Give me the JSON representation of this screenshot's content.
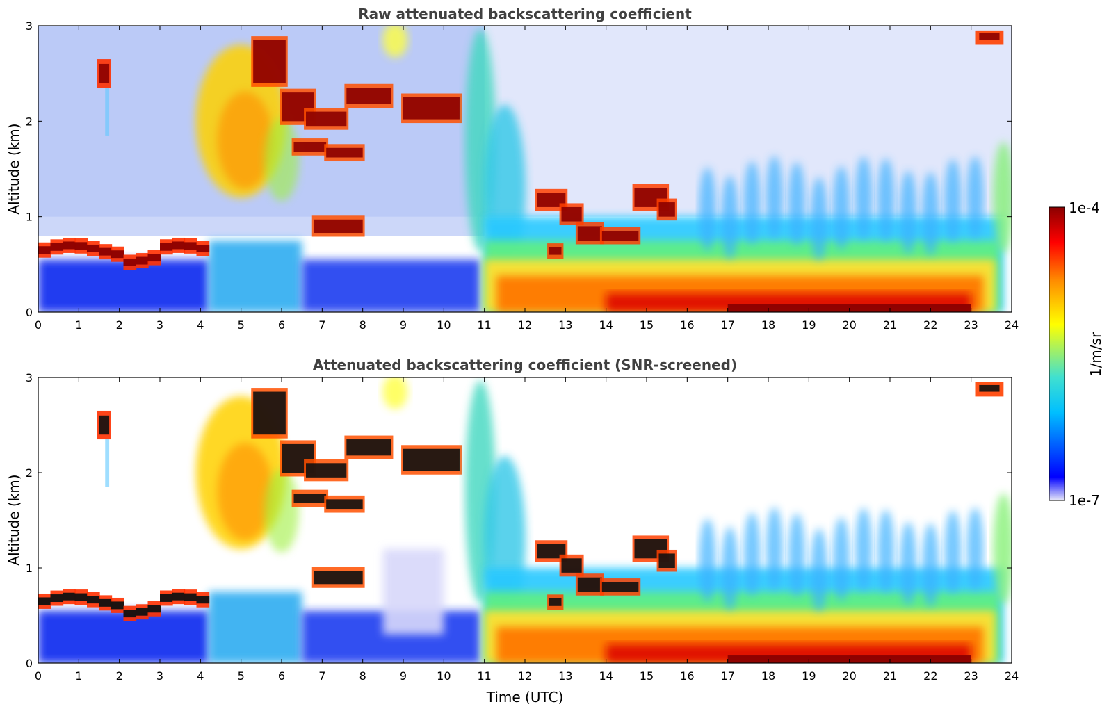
{
  "chart_data": [
    {
      "type": "heatmap",
      "title": "Raw attenuated backscattering coefficient",
      "xlabel": "",
      "ylabel": "Altitude (km)",
      "xlim": [
        0,
        24
      ],
      "ylim": [
        0,
        3
      ],
      "xticks": [
        "0",
        "1",
        "2",
        "3",
        "4",
        "5",
        "6",
        "7",
        "8",
        "9",
        "10",
        "11",
        "12",
        "13",
        "14",
        "15",
        "16",
        "17",
        "18",
        "19",
        "20",
        "21",
        "22",
        "23",
        "24"
      ],
      "yticks": [
        "0",
        "1",
        "2",
        "3"
      ],
      "grid": false,
      "log_color_scale": true,
      "features": [
        {
          "x": [
            0,
            4.2
          ],
          "y": [
            0.5,
            0.75
          ],
          "level": "max"
        },
        {
          "x": [
            1.5,
            1.8
          ],
          "y": [
            2.35,
            2.65
          ],
          "level": "high"
        },
        {
          "x": [
            4.3,
            5.9
          ],
          "y": [
            1.2,
            2.9
          ],
          "level": "mid-high"
        },
        {
          "x": [
            5.2,
            6.2
          ],
          "y": [
            2.35,
            2.85
          ],
          "level": "max"
        },
        {
          "x": [
            6.0,
            7.6
          ],
          "y": [
            1.9,
            2.3
          ],
          "level": "max"
        },
        {
          "x": [
            6.8,
            8.0
          ],
          "y": [
            0.8,
            0.95
          ],
          "level": "max"
        },
        {
          "x": [
            7.6,
            8.7
          ],
          "y": [
            2.15,
            2.35
          ],
          "level": "max"
        },
        {
          "x": [
            9.0,
            10.4
          ],
          "y": [
            2.0,
            2.25
          ],
          "level": "max"
        },
        {
          "x": [
            11.0,
            24.0
          ],
          "y": [
            0.0,
            0.6
          ],
          "level": "high"
        },
        {
          "x": [
            12.5,
            15.8
          ],
          "y": [
            0.7,
            1.3
          ],
          "level": "max"
        }
      ]
    },
    {
      "type": "heatmap",
      "title": "Attenuated backscattering coefficient (SNR-screened)",
      "xlabel": "Time (UTC)",
      "ylabel": "Altitude (km)",
      "xlim": [
        0,
        24
      ],
      "ylim": [
        0,
        3
      ],
      "xticks": [
        "0",
        "1",
        "2",
        "3",
        "4",
        "5",
        "6",
        "7",
        "8",
        "9",
        "10",
        "11",
        "12",
        "13",
        "14",
        "15",
        "16",
        "17",
        "18",
        "19",
        "20",
        "21",
        "22",
        "23",
        "24"
      ],
      "yticks": [
        "0",
        "1",
        "2",
        "3"
      ],
      "grid": false,
      "log_color_scale": true,
      "screened_regions_white": true
    }
  ],
  "colorbar": {
    "label": "1/m/sr",
    "min_label": "1e-7",
    "max_label": "1e-4",
    "colormap": [
      "#e8e8f8",
      "#0000ff",
      "#00bfff",
      "#40e0d0",
      "#ffff00",
      "#ff8c00",
      "#ff0000",
      "#8b0000"
    ]
  }
}
